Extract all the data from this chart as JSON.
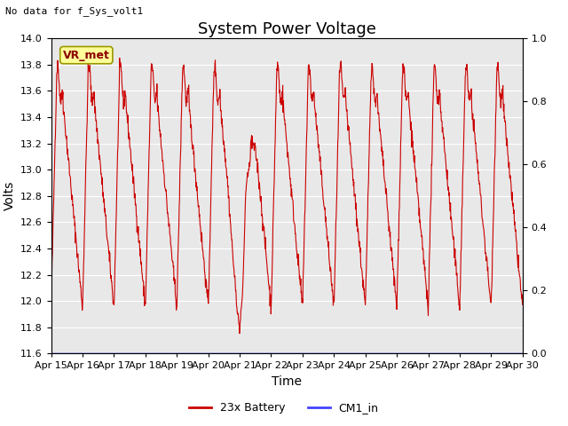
{
  "title": "System Power Voltage",
  "xlabel": "Time",
  "ylabel": "Volts",
  "no_data_text": "No data for f_Sys_volt1",
  "ylim_left": [
    11.6,
    14.0
  ],
  "ylim_right": [
    0.0,
    1.0
  ],
  "yticks_left": [
    11.6,
    11.8,
    12.0,
    12.2,
    12.4,
    12.6,
    12.8,
    13.0,
    13.2,
    13.4,
    13.6,
    13.8,
    14.0
  ],
  "yticks_right": [
    0.0,
    0.2,
    0.4,
    0.6,
    0.8,
    1.0
  ],
  "xtick_labels": [
    "Apr 15",
    "Apr 16",
    "Apr 17",
    "Apr 18",
    "Apr 19",
    "Apr 20",
    "Apr 21",
    "Apr 22",
    "Apr 23",
    "Apr 24",
    "Apr 25",
    "Apr 26",
    "Apr 27",
    "Apr 28",
    "Apr 29",
    "Apr 30"
  ],
  "fig_bg_color": "#ffffff",
  "plot_bg_color": "#e8e8e8",
  "grid_color": "#ffffff",
  "line_color_battery": "#cc0000",
  "line_color_cm1": "#4444ff",
  "legend_battery": "23x Battery",
  "legend_cm1": "CM1_in",
  "vr_met_label": "VR_met",
  "vr_met_bg": "#ffff99",
  "vr_met_border": "#999900",
  "title_fontsize": 13,
  "axis_label_fontsize": 10,
  "tick_fontsize": 8,
  "annotation_fontsize": 9
}
